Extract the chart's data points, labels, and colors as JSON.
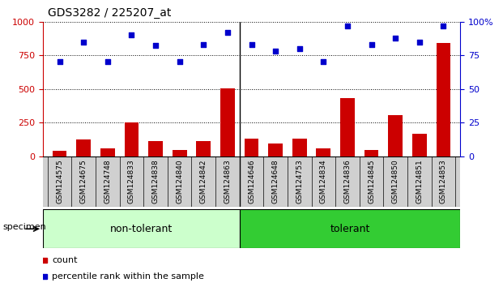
{
  "title": "GDS3282 / 225207_at",
  "samples": [
    "GSM124575",
    "GSM124675",
    "GSM124748",
    "GSM124833",
    "GSM124838",
    "GSM124840",
    "GSM124842",
    "GSM124863",
    "GSM124646",
    "GSM124648",
    "GSM124753",
    "GSM124834",
    "GSM124836",
    "GSM124845",
    "GSM124850",
    "GSM124851",
    "GSM124853"
  ],
  "counts": [
    40,
    125,
    60,
    255,
    115,
    50,
    115,
    505,
    130,
    95,
    130,
    60,
    435,
    50,
    305,
    170,
    840
  ],
  "percentiles": [
    70,
    85,
    70,
    90,
    82,
    70,
    83,
    92,
    83,
    78,
    80,
    70,
    97,
    83,
    88,
    85,
    97
  ],
  "non_tolerant_count": 8,
  "tolerant_count": 9,
  "bar_color": "#cc0000",
  "scatter_color": "#0000cc",
  "bg_color": "#ffffff",
  "ylim_left": [
    0,
    1000
  ],
  "ylim_right": [
    0,
    100
  ],
  "yticks_left": [
    0,
    250,
    500,
    750,
    1000
  ],
  "yticks_right": [
    0,
    25,
    50,
    75,
    100
  ],
  "ytick_labels_right": [
    "0",
    "25",
    "50",
    "75",
    "100%"
  ],
  "non_tolerant_color": "#ccffcc",
  "tolerant_color": "#33cc33",
  "specimen_label": "specimen",
  "non_tolerant_label": "non-tolerant",
  "tolerant_label": "tolerant",
  "legend_count_label": "count",
  "legend_pct_label": "percentile rank within the sample",
  "bar_width": 0.6,
  "label_gray": "#d0d0d0"
}
